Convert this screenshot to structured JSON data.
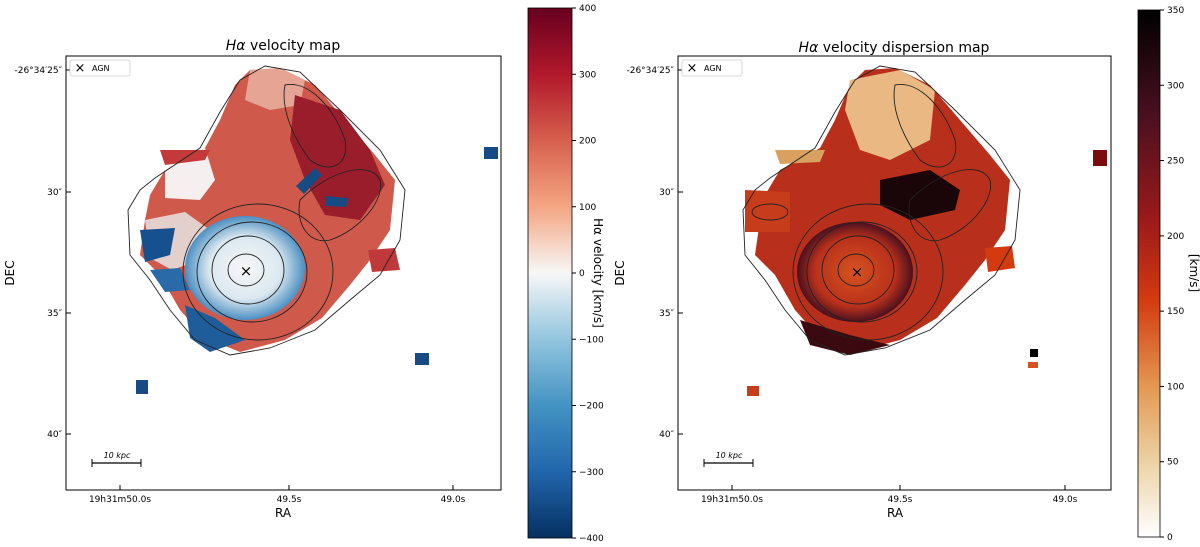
{
  "chart_data": [
    {
      "type": "heatmap",
      "title": "Hα velocity map",
      "title_symbol": "Hα",
      "title_rest": " velocity map",
      "xlabel": "RA",
      "ylabel": "DEC",
      "x_ticks": [
        "19h31m50.0s",
        "49.5s",
        "49.0s"
      ],
      "y_ticks": [
        "-26°34′25″",
        "30″",
        "35″",
        "40″"
      ],
      "legend": {
        "marker": "×",
        "label": "AGN",
        "position": "top-left"
      },
      "scalebar_label": "10 kpc",
      "colorbar": {
        "label": "Hα velocity [km/s]",
        "colormap": "RdBu_r",
        "range": [
          -400,
          400
        ],
        "ticks": [
          "400",
          "300",
          "200",
          "100",
          "0",
          "−100",
          "−200",
          "−300",
          "−400"
        ]
      }
    },
    {
      "type": "heatmap",
      "title": "Hα velocity dispersion map",
      "title_symbol": "Hα",
      "title_rest": " velocity dispersion map",
      "xlabel": "RA",
      "ylabel": "DEC",
      "x_ticks": [
        "19h31m50.0s",
        "49.5s",
        "49.0s"
      ],
      "y_ticks": [
        "-26°34′25″",
        "30″",
        "35″",
        "40″"
      ],
      "legend": {
        "marker": "×",
        "label": "AGN",
        "position": "top-left"
      },
      "scalebar_label": "10 kpc",
      "colorbar": {
        "label": "[km/s]",
        "colormap": "gist_heat_r",
        "range": [
          0,
          350
        ],
        "ticks": [
          "350",
          "300",
          "250",
          "200",
          "150",
          "100",
          "50",
          "0"
        ]
      }
    }
  ],
  "colors": {
    "red_high": "#67001f",
    "white_mid": "#f7f7f7",
    "blue_low": "#053061",
    "disp_high": "#000000",
    "disp_mid": "#b2182b",
    "disp_low": "#ffffff"
  }
}
